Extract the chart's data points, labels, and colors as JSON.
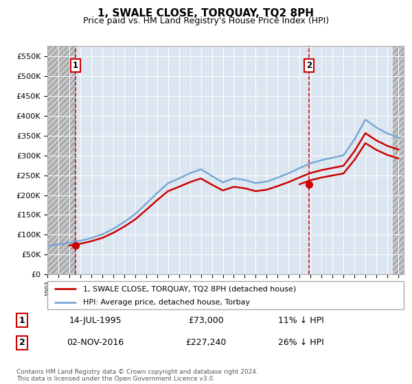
{
  "title": "1, SWALE CLOSE, TORQUAY, TQ2 8PH",
  "subtitle": "Price paid vs. HM Land Registry's House Price Index (HPI)",
  "ylabel_ticks": [
    "£0",
    "£50K",
    "£100K",
    "£150K",
    "£200K",
    "£250K",
    "£300K",
    "£350K",
    "£400K",
    "£450K",
    "£500K",
    "£550K"
  ],
  "ytick_values": [
    0,
    50000,
    100000,
    150000,
    200000,
    250000,
    300000,
    350000,
    400000,
    450000,
    500000,
    550000
  ],
  "ylim": [
    0,
    575000
  ],
  "xlim_start": 1993.0,
  "xlim_end": 2025.5,
  "sale1_x": 1995.54,
  "sale1_y": 73000,
  "sale2_x": 2016.84,
  "sale2_y": 227240,
  "hatch_end": 1995.54,
  "hatch_start2": 2024.5,
  "legend_line1": "1, SWALE CLOSE, TORQUAY, TQ2 8PH (detached house)",
  "legend_line2": "HPI: Average price, detached house, Torbay",
  "annotation1_date": "14-JUL-1995",
  "annotation1_price": "£73,000",
  "annotation1_hpi": "11% ↓ HPI",
  "annotation2_date": "02-NOV-2016",
  "annotation2_price": "£227,240",
  "annotation2_hpi": "26% ↓ HPI",
  "footer": "Contains HM Land Registry data © Crown copyright and database right 2024.\nThis data is licensed under the Open Government Licence v3.0.",
  "plot_bg_color": "#dce6f0",
  "grid_color": "#ffffff",
  "hpi_color": "#7aa8d4",
  "price_color": "#cc0000",
  "marker_color": "#cc0000"
}
